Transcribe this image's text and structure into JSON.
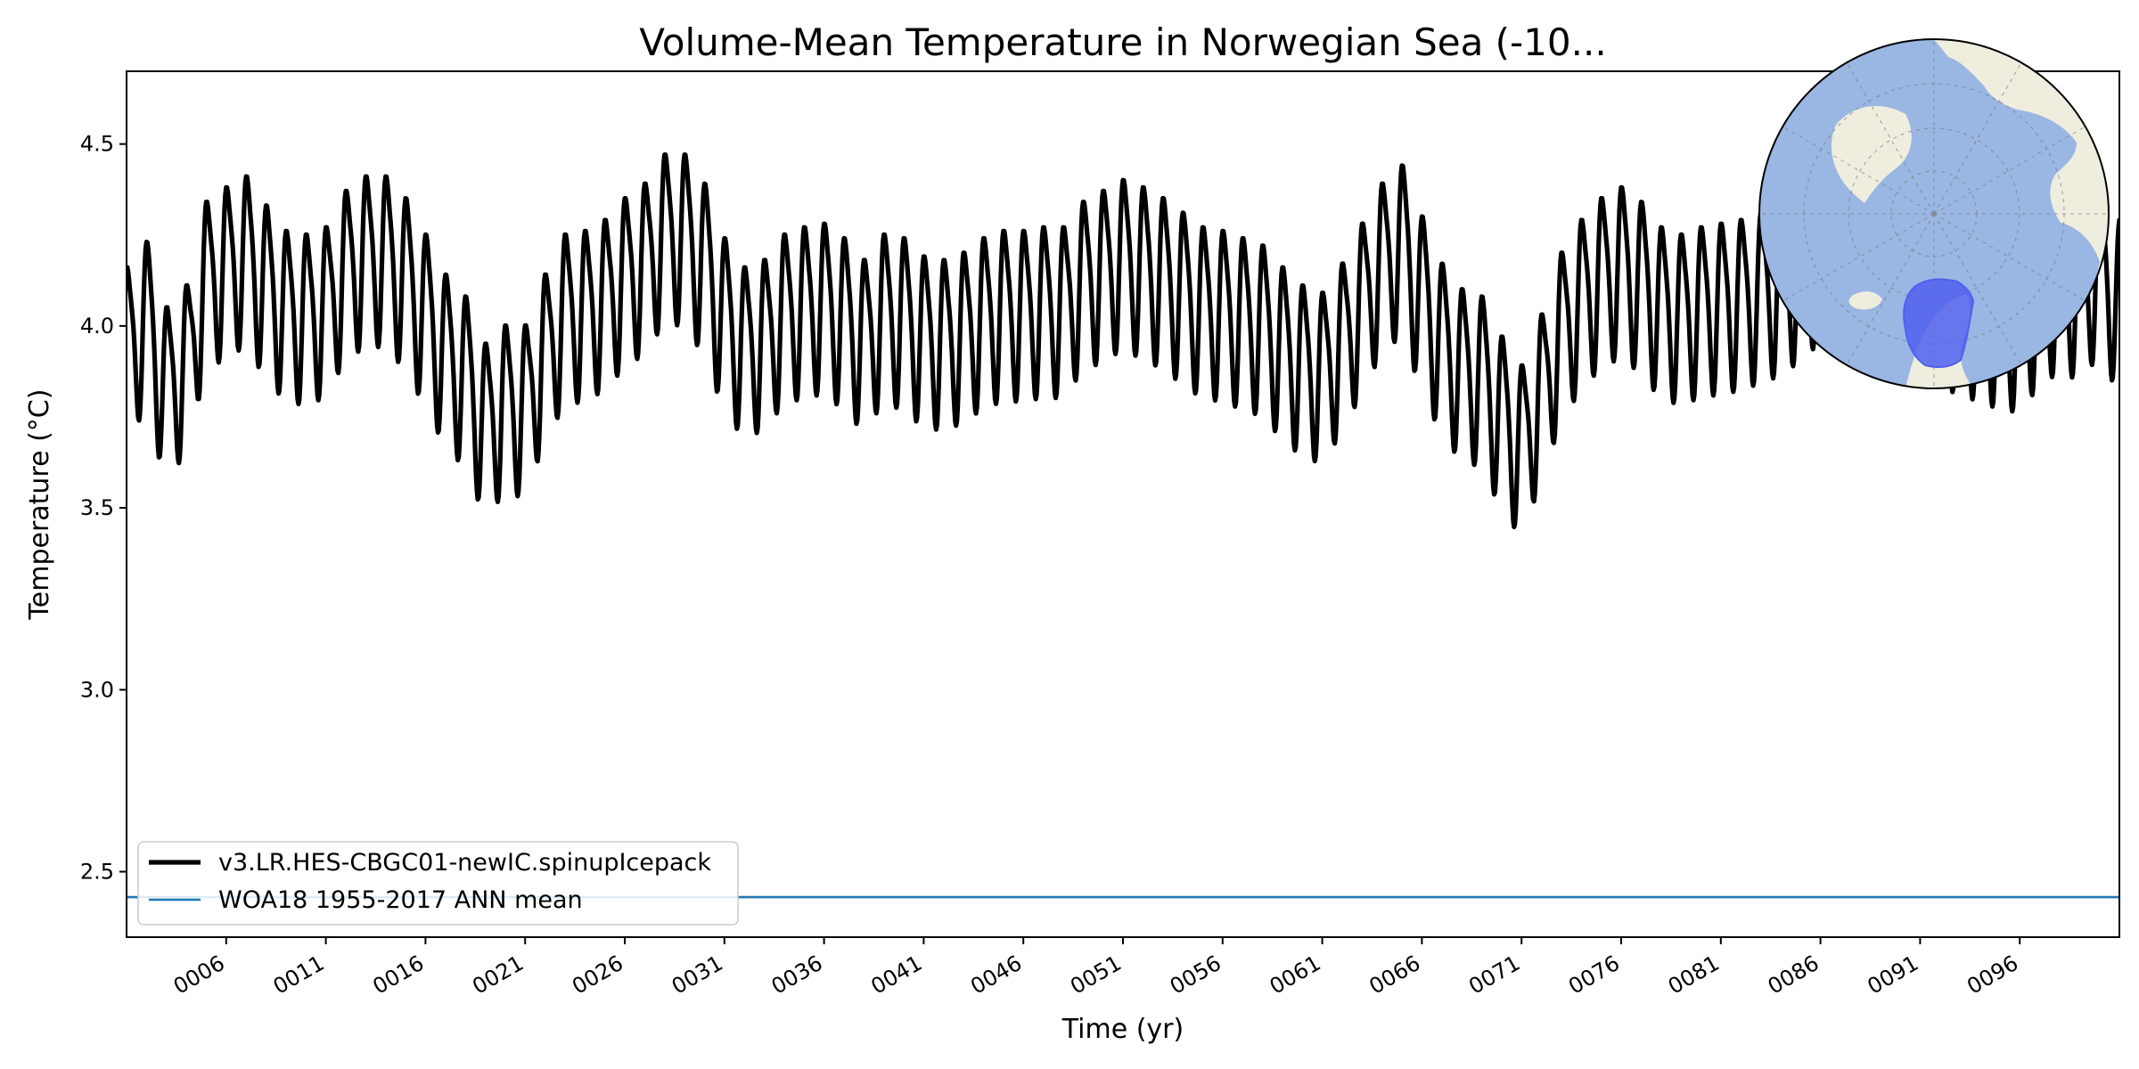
{
  "colors": {
    "series_main": "#000000",
    "series_ref": "#1f77b4",
    "land": "#efedde",
    "ocean": "#9ab6e3",
    "region": "#4f60ee"
  },
  "chart_data": {
    "type": "line",
    "title": "Volume-Mean Temperature in Norwegian Sea (-10...",
    "xlabel": "Time (yr)",
    "ylabel": "Temperature (°C)",
    "xlim": [
      1,
      101
    ],
    "ylim": [
      2.32,
      4.7
    ],
    "yticks": [
      2.5,
      3.0,
      3.5,
      4.0,
      4.5
    ],
    "ytick_labels": [
      "2.5",
      "3.0",
      "3.5",
      "4.0",
      "4.5"
    ],
    "xticks": [
      6,
      11,
      16,
      21,
      26,
      31,
      36,
      41,
      46,
      51,
      56,
      61,
      66,
      71,
      76,
      81,
      86,
      91,
      96
    ],
    "xtick_labels": [
      "0006",
      "0011",
      "0016",
      "0021",
      "0026",
      "0031",
      "0036",
      "0041",
      "0046",
      "0051",
      "0056",
      "0061",
      "0066",
      "0071",
      "0076",
      "0081",
      "0086",
      "0091",
      "0096"
    ],
    "seasonal_cycle_amplitude": 0.22,
    "series": [
      {
        "name": "v3.LR.HES-CBGC01-newIC.spinupIcepack",
        "kind": "monthly",
        "annual_mean_x": [
          1,
          2,
          3,
          4,
          5,
          6,
          7,
          8,
          9,
          10,
          11,
          12,
          13,
          14,
          15,
          16,
          17,
          18,
          19,
          20,
          21,
          22,
          23,
          24,
          25,
          26,
          27,
          28,
          29,
          30,
          31,
          32,
          33,
          34,
          35,
          36,
          37,
          38,
          39,
          40,
          41,
          42,
          43,
          44,
          45,
          46,
          47,
          48,
          49,
          50,
          51,
          52,
          53,
          54,
          55,
          56,
          57,
          58,
          59,
          60,
          61,
          62,
          63,
          64,
          65,
          66,
          67,
          68,
          69,
          70,
          71,
          72,
          73,
          74,
          75,
          76,
          77,
          78,
          79,
          80,
          81,
          82,
          83,
          84,
          85,
          86,
          87,
          88,
          89,
          90,
          91,
          92,
          93,
          94,
          95,
          96,
          97,
          98,
          99,
          100,
          101
        ],
        "annual_mean_y": [
          3.95,
          4.02,
          3.84,
          3.9,
          4.13,
          4.17,
          4.2,
          4.12,
          4.05,
          4.04,
          4.06,
          4.16,
          4.2,
          4.2,
          4.14,
          4.04,
          3.93,
          3.87,
          3.74,
          3.79,
          3.79,
          3.93,
          4.04,
          4.05,
          4.08,
          4.14,
          4.18,
          4.26,
          4.26,
          4.18,
          4.03,
          3.95,
          3.97,
          4.04,
          4.06,
          4.07,
          4.03,
          3.97,
          4.04,
          4.03,
          3.98,
          3.97,
          3.99,
          4.03,
          4.05,
          4.05,
          4.06,
          4.06,
          4.13,
          4.16,
          4.19,
          4.17,
          4.14,
          4.1,
          4.06,
          4.05,
          4.03,
          4.01,
          3.95,
          3.9,
          3.88,
          3.96,
          4.07,
          4.18,
          4.23,
          4.09,
          3.96,
          3.89,
          3.87,
          3.76,
          3.68,
          3.82,
          3.99,
          4.08,
          4.14,
          4.17,
          4.13,
          4.06,
          4.04,
          4.06,
          4.07,
          4.08,
          4.1,
          4.12,
          4.16,
          4.21,
          4.24,
          4.24,
          4.25,
          4.2,
          4.14,
          4.09,
          4.07,
          4.05,
          4.03,
          4.02,
          4.09,
          4.13,
          4.11,
          4.17,
          4.08
        ]
      },
      {
        "name": "WOA18 1955-2017 ANN mean",
        "kind": "constant",
        "value": 2.43
      }
    ],
    "legend": {
      "placement": "lower-left",
      "entries": [
        "v3.LR.HES-CBGC01-newIC.spinupIcepack",
        "WOA18 1955-2017 ANN mean"
      ]
    },
    "inset": {
      "type": "polar-map",
      "placement": "top-right",
      "description": "north polar map with Norwegian Sea region highlighted"
    }
  }
}
